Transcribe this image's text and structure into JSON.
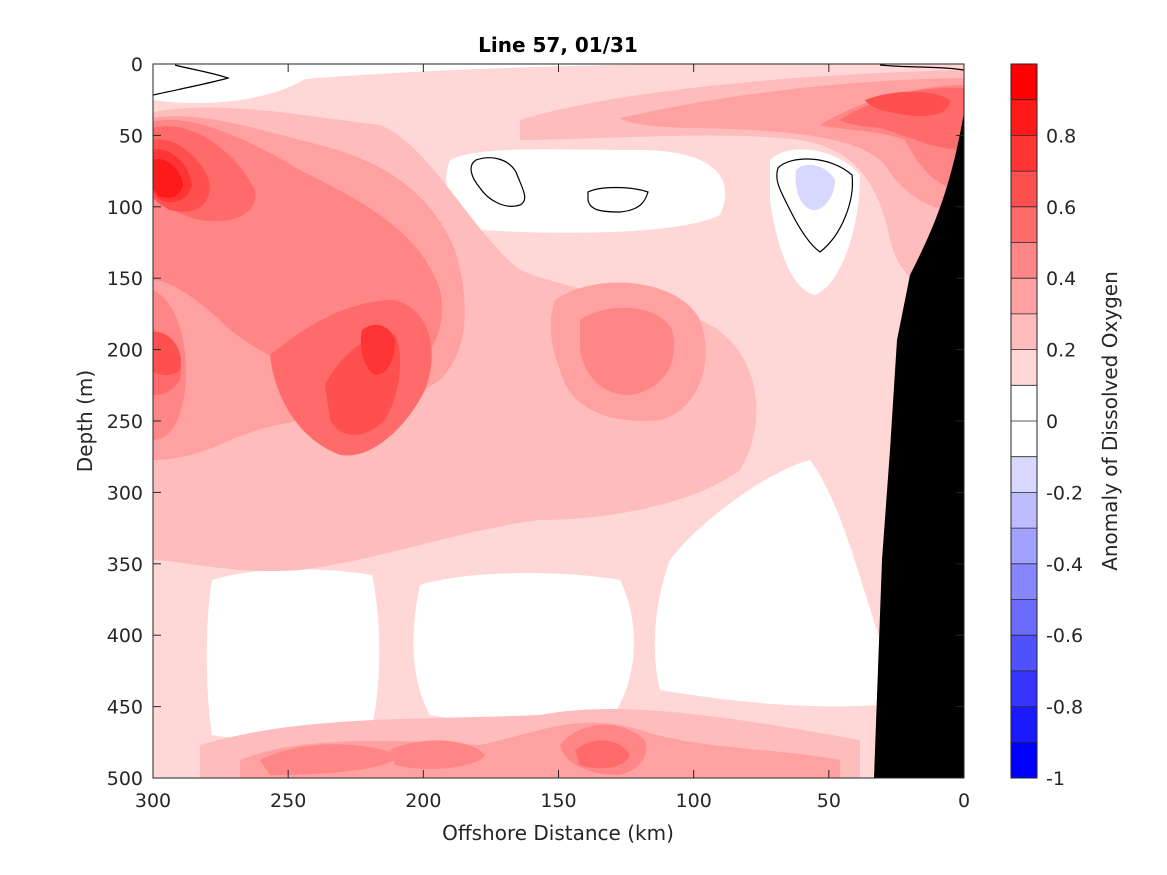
{
  "chart_data": {
    "type": "heatmap",
    "title": "Line 57, 01/31",
    "xlabel": "Offshore Distance (km)",
    "ylabel": "Depth (m)",
    "colorbar_label": "Anomaly of Dissolved Oxygen",
    "xlim": [
      300,
      0
    ],
    "ylim": [
      0,
      500
    ],
    "x_reversed": true,
    "y_reversed": true,
    "x_ticks": [
      300,
      250,
      200,
      150,
      100,
      50,
      0
    ],
    "y_ticks": [
      0,
      50,
      100,
      150,
      200,
      250,
      300,
      350,
      400,
      450,
      500
    ],
    "colorbar_ticks": [
      "0.8",
      "0.6",
      "0.4",
      "0.2",
      "0",
      "-0.2",
      "-0.4",
      "-0.6",
      "-0.8",
      "-1"
    ],
    "colorbar_tick_values": [
      0.8,
      0.6,
      0.4,
      0.2,
      0,
      -0.2,
      -0.4,
      -0.6,
      -0.8,
      -1
    ],
    "clim": [
      -1,
      1
    ],
    "levels": [
      -1,
      -0.9,
      -0.8,
      -0.7,
      -0.6,
      -0.5,
      -0.4,
      -0.3,
      -0.2,
      -0.1,
      0,
      0.1,
      0.2,
      0.3,
      0.4,
      0.5,
      0.6,
      0.7,
      0.8,
      0.9,
      1
    ],
    "colormap_colors": [
      "#0000ff",
      "#1a1aff",
      "#3535ff",
      "#5050ff",
      "#6b6bff",
      "#8686ff",
      "#a1a1ff",
      "#bcbcff",
      "#d7d7ff",
      "#ffffff",
      "#ffffff",
      "#ffd7d7",
      "#ffbcbc",
      "#ffa1a1",
      "#ff8686",
      "#ff6b6b",
      "#ff5050",
      "#ff3535",
      "#ff1a1a",
      "#ff0000"
    ],
    "features": [
      {
        "name": "O2 max",
        "x": 291,
        "y": 82,
        "value": 0.85
      },
      {
        "name": "O2 max",
        "x": 212,
        "y": 205,
        "value": 0.65
      },
      {
        "name": "O2 max",
        "x": 10,
        "y": 25,
        "value": 0.6
      },
      {
        "name": "O2 min",
        "x": 55,
        "y": 85,
        "value": -0.15
      }
    ],
    "seafloor_color": "#000000"
  }
}
